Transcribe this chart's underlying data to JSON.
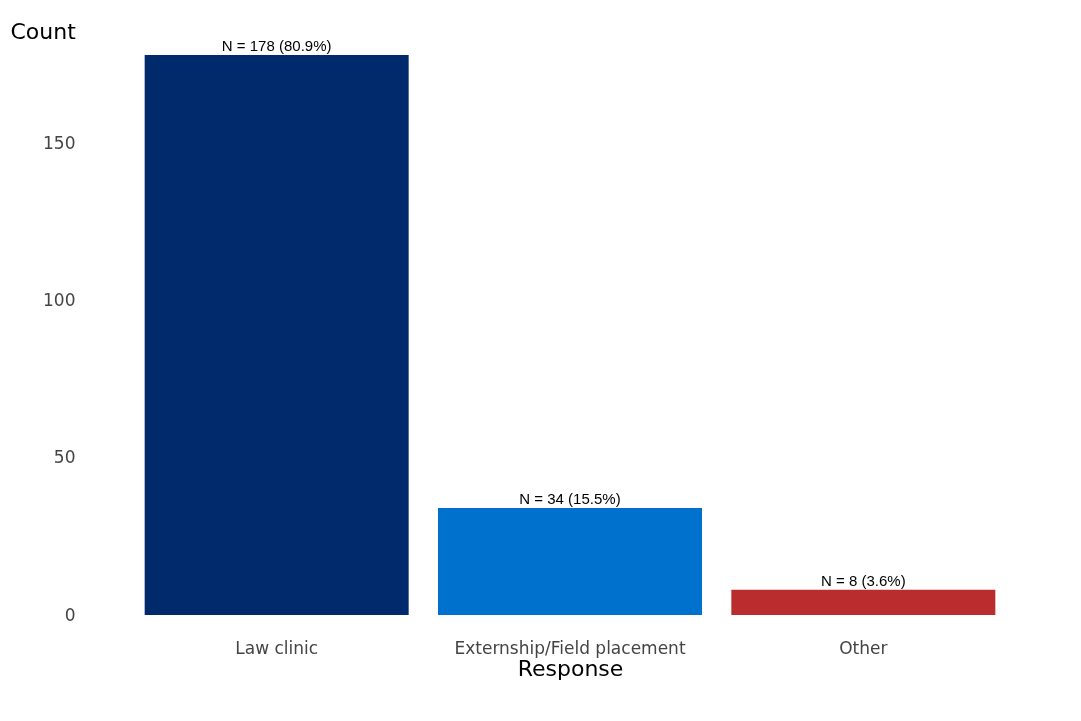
{
  "chart_data": {
    "type": "bar",
    "xlabel": "Response",
    "ylabel": "Count",
    "categories": [
      "Law clinic",
      "Externship/Field placement",
      "Other"
    ],
    "values": [
      178,
      34,
      8
    ],
    "colors": [
      "#002a6c",
      "#0072ce",
      "#ba2d2e"
    ],
    "value_labels": [
      "N = 178 (80.9%)",
      "N = 34 (15.5%)",
      "N = 8 (3.6%)"
    ],
    "ylim": [
      0,
      178
    ],
    "yticks": [
      0,
      50,
      100,
      150
    ],
    "grid": false
  }
}
